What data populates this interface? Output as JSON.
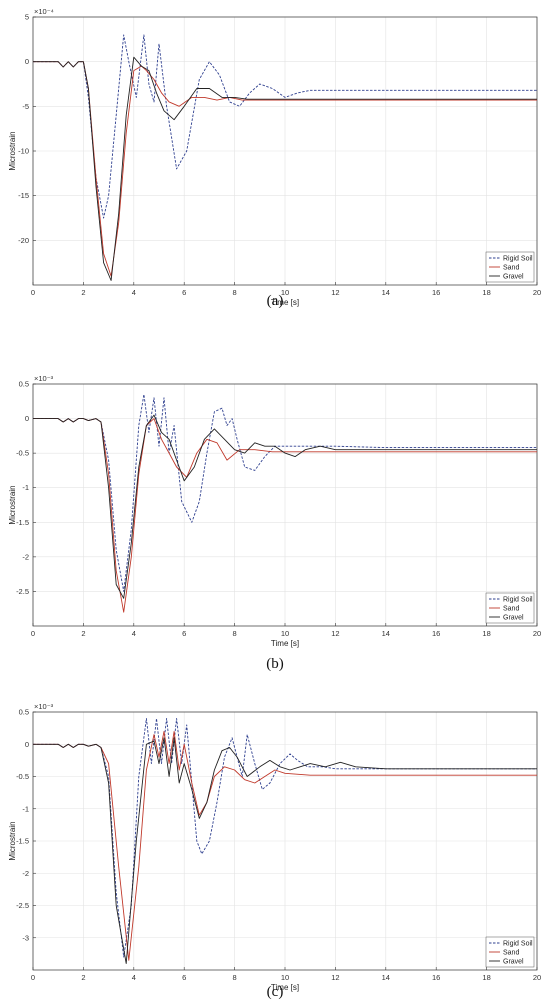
{
  "chart_data": [
    {
      "type": "line",
      "panel_label": "(a)",
      "xlabel": "Time [s]",
      "ylabel": "Microstrain",
      "exponent_label": "×10⁻⁴",
      "xlim": [
        0,
        20
      ],
      "ylim": [
        -25,
        5
      ],
      "xticks": [
        "0",
        "2",
        "4",
        "6",
        "8",
        "10",
        "12",
        "14",
        "16",
        "18",
        "20"
      ],
      "yticks": [
        "5",
        "0",
        "-5",
        "-10",
        "-15",
        "-20"
      ],
      "ytick_values": [
        5,
        0,
        -5,
        -10,
        -15,
        -20
      ],
      "grid": true,
      "legend_position": "bottom-right",
      "series": [
        {
          "name": "Rigid Soil",
          "color": "#2e3f8f",
          "style": "dashed",
          "x": [
            0,
            1,
            1.2,
            1.4,
            1.6,
            1.8,
            2.0,
            2.2,
            2.5,
            2.8,
            3.0,
            3.3,
            3.6,
            3.8,
            4.1,
            4.4,
            4.6,
            4.8,
            5.0,
            5.3,
            5.7,
            6.1,
            6.6,
            7.0,
            7.4,
            7.8,
            8.2,
            8.6,
            9.0,
            9.5,
            10.0,
            10.5,
            11,
            12,
            14,
            16,
            18,
            20
          ],
          "y": [
            0,
            0,
            -0.6,
            0,
            -0.6,
            0,
            0,
            -4,
            -13,
            -17.5,
            -15,
            -6,
            3,
            0,
            -4,
            3,
            -2.5,
            -4.5,
            2,
            -5,
            -12,
            -10,
            -2,
            0,
            -1.5,
            -4.5,
            -5,
            -3.5,
            -2.5,
            -3,
            -4,
            -3.5,
            -3.2,
            -3.2,
            -3.2,
            -3.2,
            -3.2,
            -3.2
          ]
        },
        {
          "name": "Sand",
          "color": "#c0392b",
          "style": "solid",
          "x": [
            0,
            1,
            1.2,
            1.4,
            1.6,
            1.8,
            2.0,
            2.2,
            2.5,
            2.8,
            3.1,
            3.4,
            3.7,
            4.0,
            4.3,
            4.5,
            4.8,
            5.1,
            5.4,
            5.8,
            6.3,
            6.8,
            7.3,
            7.8,
            8.3,
            9,
            10,
            12,
            14,
            16,
            18,
            20
          ],
          "y": [
            0,
            0,
            -0.6,
            0,
            -0.6,
            0,
            0,
            -3,
            -13,
            -21.5,
            -24,
            -18,
            -8,
            -1,
            -0.5,
            -1,
            -2,
            -3.5,
            -4.5,
            -5,
            -4,
            -4,
            -4.3,
            -4,
            -4.3,
            -4.3,
            -4.3,
            -4.3,
            -4.3,
            -4.3,
            -4.3,
            -4.3
          ]
        },
        {
          "name": "Gravel",
          "color": "#222222",
          "style": "solid",
          "x": [
            0,
            1,
            1.2,
            1.4,
            1.6,
            1.8,
            2.0,
            2.2,
            2.5,
            2.8,
            3.1,
            3.4,
            3.7,
            4.0,
            4.3,
            4.6,
            4.9,
            5.2,
            5.6,
            6.0,
            6.5,
            7.0,
            7.5,
            8.0,
            8.5,
            9,
            10,
            12,
            14,
            16,
            18,
            20
          ],
          "y": [
            0,
            0,
            -0.6,
            0,
            -0.6,
            0,
            0,
            -3,
            -14,
            -22.5,
            -24.5,
            -17,
            -6,
            0.5,
            -0.5,
            -1,
            -3.5,
            -5.5,
            -6.5,
            -5,
            -3,
            -3,
            -4,
            -4,
            -4.2,
            -4.2,
            -4.2,
            -4.2,
            -4.2,
            -4.2,
            -4.2,
            -4.2
          ]
        }
      ]
    },
    {
      "type": "line",
      "panel_label": "(b)",
      "xlabel": "Time [s]",
      "ylabel": "Microstrain",
      "exponent_label": "×10⁻³",
      "xlim": [
        0,
        20
      ],
      "ylim": [
        -3.0,
        0.5
      ],
      "xticks": [
        "0",
        "2",
        "4",
        "6",
        "8",
        "10",
        "12",
        "14",
        "16",
        "18",
        "20"
      ],
      "yticks": [
        "0.5",
        "0",
        "-0.5",
        "-1",
        "-1.5",
        "-2",
        "-2.5"
      ],
      "ytick_values": [
        0.5,
        0,
        -0.5,
        -1,
        -1.5,
        -2,
        -2.5
      ],
      "grid": true,
      "legend_position": "bottom-right",
      "series": [
        {
          "name": "Rigid Soil",
          "color": "#2e3f8f",
          "style": "dashed",
          "x": [
            0,
            1,
            1.2,
            1.4,
            1.6,
            1.8,
            2.0,
            2.2,
            2.5,
            2.7,
            3.0,
            3.3,
            3.6,
            3.9,
            4.2,
            4.4,
            4.6,
            4.8,
            5.0,
            5.2,
            5.4,
            5.6,
            5.9,
            6.3,
            6.6,
            6.9,
            7.2,
            7.5,
            7.7,
            7.9,
            8.1,
            8.4,
            8.8,
            9.2,
            9.6,
            10,
            11,
            12,
            14,
            16,
            18,
            20
          ],
          "y": [
            0,
            0,
            -0.05,
            0,
            -0.05,
            0,
            0,
            -0.03,
            0,
            -0.05,
            -0.6,
            -1.9,
            -2.5,
            -1.6,
            -0.1,
            0.35,
            -0.2,
            0.3,
            -0.4,
            0.3,
            -0.5,
            -0.1,
            -1.2,
            -1.5,
            -1.2,
            -0.5,
            0.1,
            0.15,
            -0.1,
            0,
            -0.3,
            -0.7,
            -0.75,
            -0.55,
            -0.4,
            -0.4,
            -0.4,
            -0.4,
            -0.42,
            -0.42,
            -0.42,
            -0.42
          ]
        },
        {
          "name": "Sand",
          "color": "#c0392b",
          "style": "solid",
          "x": [
            0,
            1,
            1.2,
            1.4,
            1.6,
            1.8,
            2.0,
            2.2,
            2.5,
            2.7,
            3.0,
            3.3,
            3.6,
            3.9,
            4.2,
            4.5,
            4.8,
            5.1,
            5.4,
            5.7,
            6.1,
            6.5,
            6.9,
            7.3,
            7.7,
            8.2,
            8.8,
            9.5,
            10,
            11,
            12,
            14,
            16,
            18,
            20
          ],
          "y": [
            0,
            0,
            -0.05,
            0,
            -0.05,
            0,
            0,
            -0.03,
            0,
            -0.05,
            -0.8,
            -2.2,
            -2.8,
            -2.0,
            -0.8,
            -0.1,
            0.0,
            -0.3,
            -0.5,
            -0.7,
            -0.85,
            -0.5,
            -0.3,
            -0.35,
            -0.6,
            -0.45,
            -0.45,
            -0.48,
            -0.48,
            -0.48,
            -0.48,
            -0.48,
            -0.48,
            -0.48,
            -0.48
          ]
        },
        {
          "name": "Gravel",
          "color": "#222222",
          "style": "solid",
          "x": [
            0,
            1,
            1.2,
            1.4,
            1.6,
            1.8,
            2.0,
            2.2,
            2.5,
            2.7,
            3.0,
            3.3,
            3.6,
            3.9,
            4.2,
            4.5,
            4.8,
            5.1,
            5.4,
            5.7,
            6.0,
            6.4,
            6.8,
            7.2,
            7.6,
            8.0,
            8.4,
            8.8,
            9.2,
            9.6,
            10,
            10.4,
            10.8,
            11.4,
            12,
            14,
            16,
            18,
            20
          ],
          "y": [
            0,
            0,
            -0.05,
            0,
            -0.05,
            0,
            0,
            -0.03,
            0,
            -0.05,
            -1.0,
            -2.4,
            -2.6,
            -1.8,
            -0.7,
            -0.1,
            0.05,
            -0.2,
            -0.3,
            -0.6,
            -0.9,
            -0.7,
            -0.3,
            -0.15,
            -0.3,
            -0.45,
            -0.5,
            -0.35,
            -0.4,
            -0.4,
            -0.5,
            -0.55,
            -0.45,
            -0.4,
            -0.45,
            -0.45,
            -0.45,
            -0.45,
            -0.45
          ]
        }
      ]
    },
    {
      "type": "line",
      "panel_label": "(c)",
      "xlabel": "Time [s]",
      "ylabel": "Microstrain",
      "exponent_label": "×10⁻³",
      "xlim": [
        0,
        20
      ],
      "ylim": [
        -3.5,
        0.5
      ],
      "xticks": [
        "0",
        "2",
        "4",
        "6",
        "8",
        "10",
        "12",
        "14",
        "16",
        "18",
        "20"
      ],
      "yticks": [
        "0.5",
        "0",
        "-0.5",
        "-1",
        "-1.5",
        "-2",
        "-2.5",
        "-3"
      ],
      "ytick_values": [
        0.5,
        0,
        -0.5,
        -1,
        -1.5,
        -2,
        -2.5,
        -3
      ],
      "grid": true,
      "legend_position": "bottom-right",
      "series": [
        {
          "name": "Rigid Soil",
          "color": "#2e3f8f",
          "style": "dashed",
          "x": [
            0,
            1,
            1.2,
            1.4,
            1.6,
            1.8,
            2.0,
            2.2,
            2.5,
            2.7,
            3.0,
            3.3,
            3.6,
            3.9,
            4.2,
            4.5,
            4.7,
            4.9,
            5.1,
            5.3,
            5.5,
            5.7,
            5.9,
            6.1,
            6.3,
            6.5,
            6.7,
            7.0,
            7.3,
            7.6,
            7.9,
            8.1,
            8.3,
            8.5,
            8.8,
            9.1,
            9.4,
            9.8,
            10.2,
            10.5,
            10.9,
            11.5,
            12,
            14,
            16,
            18,
            20
          ],
          "y": [
            0,
            0,
            -0.05,
            0,
            -0.05,
            0,
            0,
            -0.03,
            0,
            -0.05,
            -0.5,
            -2.3,
            -3.3,
            -2.5,
            -0.5,
            0.4,
            -0.3,
            0.4,
            -0.3,
            0.4,
            -0.3,
            0.4,
            -0.3,
            0.3,
            -0.6,
            -1.5,
            -1.7,
            -1.5,
            -0.9,
            -0.2,
            0.1,
            -0.2,
            -0.5,
            0.15,
            -0.3,
            -0.7,
            -0.6,
            -0.3,
            -0.15,
            -0.25,
            -0.35,
            -0.35,
            -0.38,
            -0.38,
            -0.38,
            -0.38,
            -0.38
          ]
        },
        {
          "name": "Sand",
          "color": "#c0392b",
          "style": "solid",
          "x": [
            0,
            1,
            1.2,
            1.4,
            1.6,
            1.8,
            2.0,
            2.2,
            2.5,
            2.7,
            3.0,
            3.4,
            3.8,
            4.2,
            4.5,
            4.8,
            5.0,
            5.2,
            5.4,
            5.6,
            5.8,
            6.0,
            6.3,
            6.6,
            6.9,
            7.2,
            7.6,
            8.0,
            8.4,
            8.8,
            9.2,
            9.6,
            10,
            11,
            12,
            14,
            16,
            18,
            20
          ],
          "y": [
            0,
            0,
            -0.05,
            0,
            -0.05,
            0,
            0,
            -0.03,
            0,
            -0.05,
            -0.3,
            -1.9,
            -3.35,
            -1.9,
            -0.4,
            0.15,
            -0.2,
            0.2,
            -0.3,
            0.2,
            -0.4,
            0.0,
            -0.6,
            -1.1,
            -0.9,
            -0.5,
            -0.35,
            -0.4,
            -0.55,
            -0.6,
            -0.5,
            -0.4,
            -0.45,
            -0.48,
            -0.48,
            -0.48,
            -0.48,
            -0.48,
            -0.48
          ]
        },
        {
          "name": "Gravel",
          "color": "#222222",
          "style": "solid",
          "x": [
            0,
            1,
            1.2,
            1.4,
            1.6,
            1.8,
            2.0,
            2.2,
            2.5,
            2.7,
            3.0,
            3.3,
            3.7,
            4.1,
            4.5,
            4.8,
            5.0,
            5.2,
            5.4,
            5.6,
            5.8,
            6.0,
            6.3,
            6.6,
            6.9,
            7.2,
            7.5,
            7.8,
            8.1,
            8.5,
            9.0,
            9.4,
            9.8,
            10.2,
            10.6,
            11,
            11.6,
            12.2,
            12.8,
            14,
            16,
            18,
            20
          ],
          "y": [
            0,
            0,
            -0.05,
            0,
            -0.05,
            0,
            0,
            -0.03,
            0,
            -0.05,
            -0.6,
            -2.5,
            -3.4,
            -1.5,
            0.0,
            0.05,
            -0.3,
            0.1,
            -0.5,
            0.1,
            -0.6,
            -0.3,
            -0.7,
            -1.15,
            -0.9,
            -0.4,
            -0.1,
            -0.05,
            -0.2,
            -0.5,
            -0.35,
            -0.25,
            -0.35,
            -0.4,
            -0.35,
            -0.3,
            -0.35,
            -0.28,
            -0.35,
            -0.38,
            -0.38,
            -0.38,
            -0.38
          ]
        }
      ]
    }
  ]
}
